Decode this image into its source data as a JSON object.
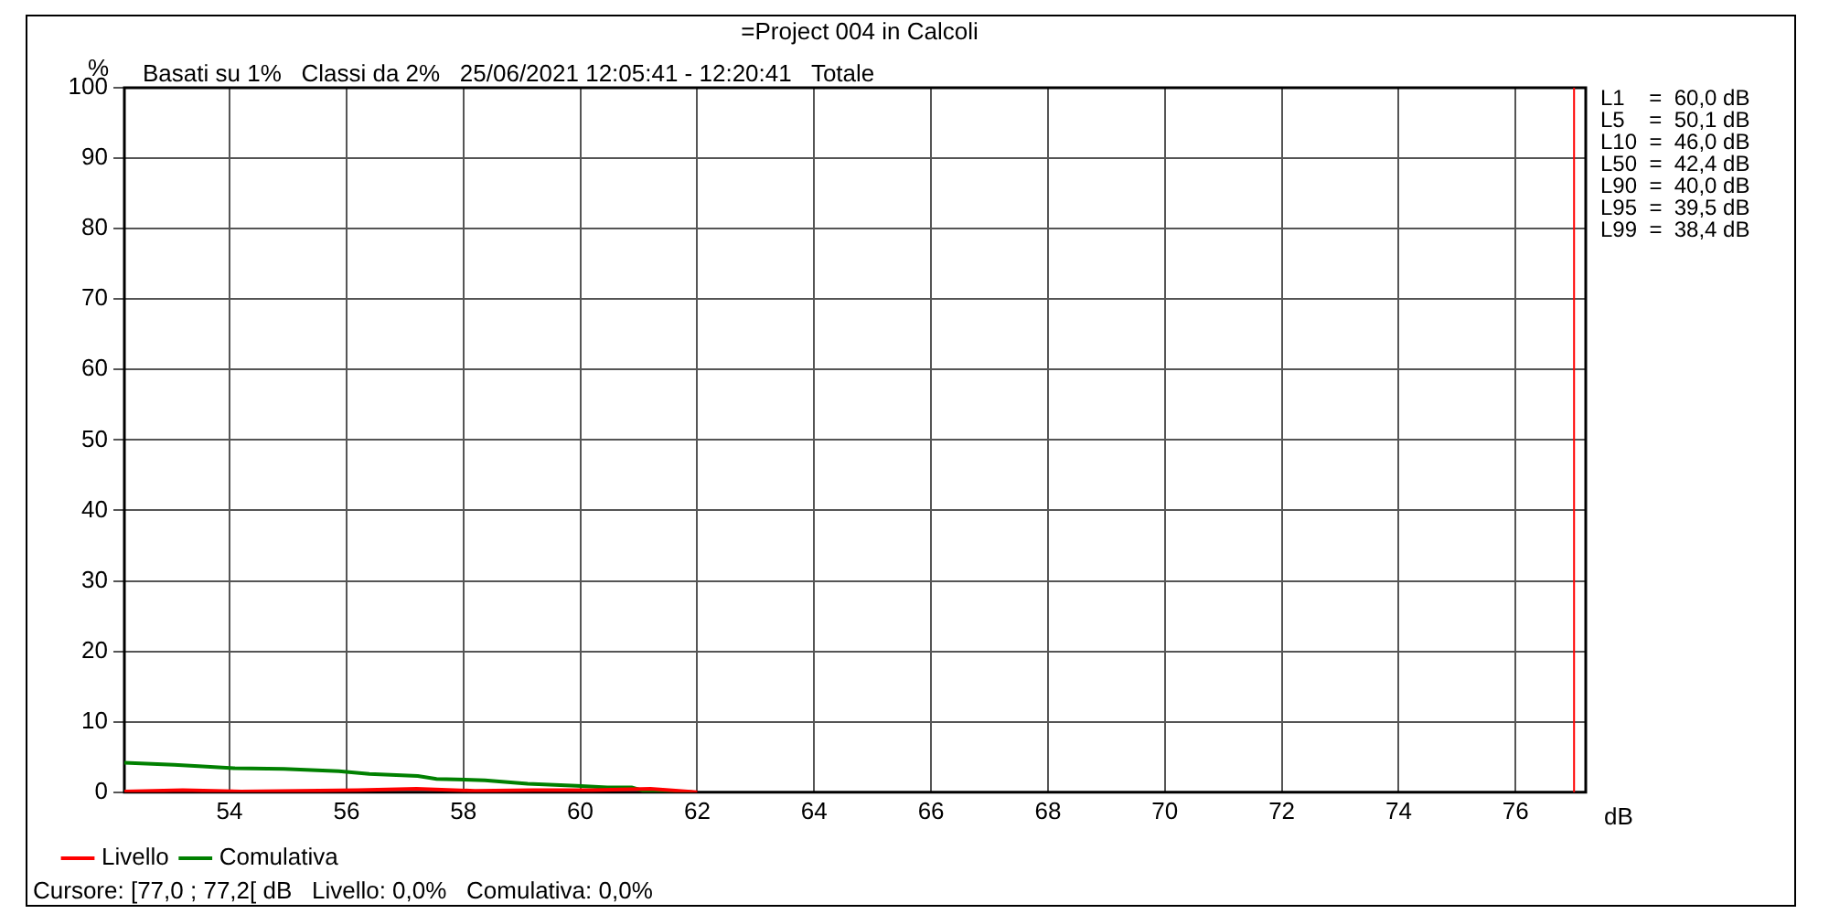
{
  "chart_data": {
    "type": "line",
    "title": "=Project 004 in Calcoli",
    "subtitle": "Basati su 1%   Classi da 2%   25/06/2021 12:05:41 - 12:20:41   Totale",
    "xlabel": "dB",
    "ylabel": "%",
    "series": [
      {
        "name": "Livello",
        "color": "#ff0000",
        "x": [
          52.2,
          53.2,
          54.2,
          55.2,
          56.2,
          57.2,
          58.2,
          59.2,
          60.2,
          61.2,
          62
        ],
        "values": [
          0.1,
          0.3,
          0.1,
          0.2,
          0.3,
          0.5,
          0.2,
          0.3,
          0.3,
          0.5,
          0
        ]
      },
      {
        "name": "Comulativa",
        "color": "#008000",
        "x": [
          52.2,
          53.05,
          53.47,
          54.09,
          54.93,
          55.87,
          56.39,
          57.22,
          57.54,
          58.37,
          59.1,
          59.94,
          60.46,
          60.88,
          61.08,
          61.92
        ],
        "values": [
          4.2,
          3.9,
          3.7,
          3.4,
          3.3,
          3.0,
          2.6,
          2.3,
          1.9,
          1.7,
          1.2,
          0.9,
          0.7,
          0.7,
          0.2,
          0
        ]
      }
    ],
    "xlim": [
      52.2,
      77.2
    ],
    "xticks": [
      54,
      56,
      58,
      60,
      62,
      64,
      66,
      68,
      70,
      72,
      74,
      76
    ],
    "ylim": [
      0,
      100
    ],
    "yticks": [
      0,
      10,
      20,
      30,
      40,
      50,
      60,
      70,
      80,
      90,
      100
    ],
    "grid": true,
    "legend": "bottom",
    "marker": "none",
    "ref_lines": [
      {
        "axis": "x",
        "value": 77,
        "color": "#ff0000"
      }
    ],
    "annotations": [
      "L1    =  60,0 dB",
      "L5    =  50,1 dB",
      "L10  =  46,0 dB",
      "L50  =  42,4 dB",
      "L90  =  40,0 dB",
      "L95  =  39,5 dB",
      "L99  =  38,4 dB",
      "Cursore: [77,0 ; 77,2[ dB   Livello: 0,0%   Comulativa: 0,0%"
    ]
  }
}
